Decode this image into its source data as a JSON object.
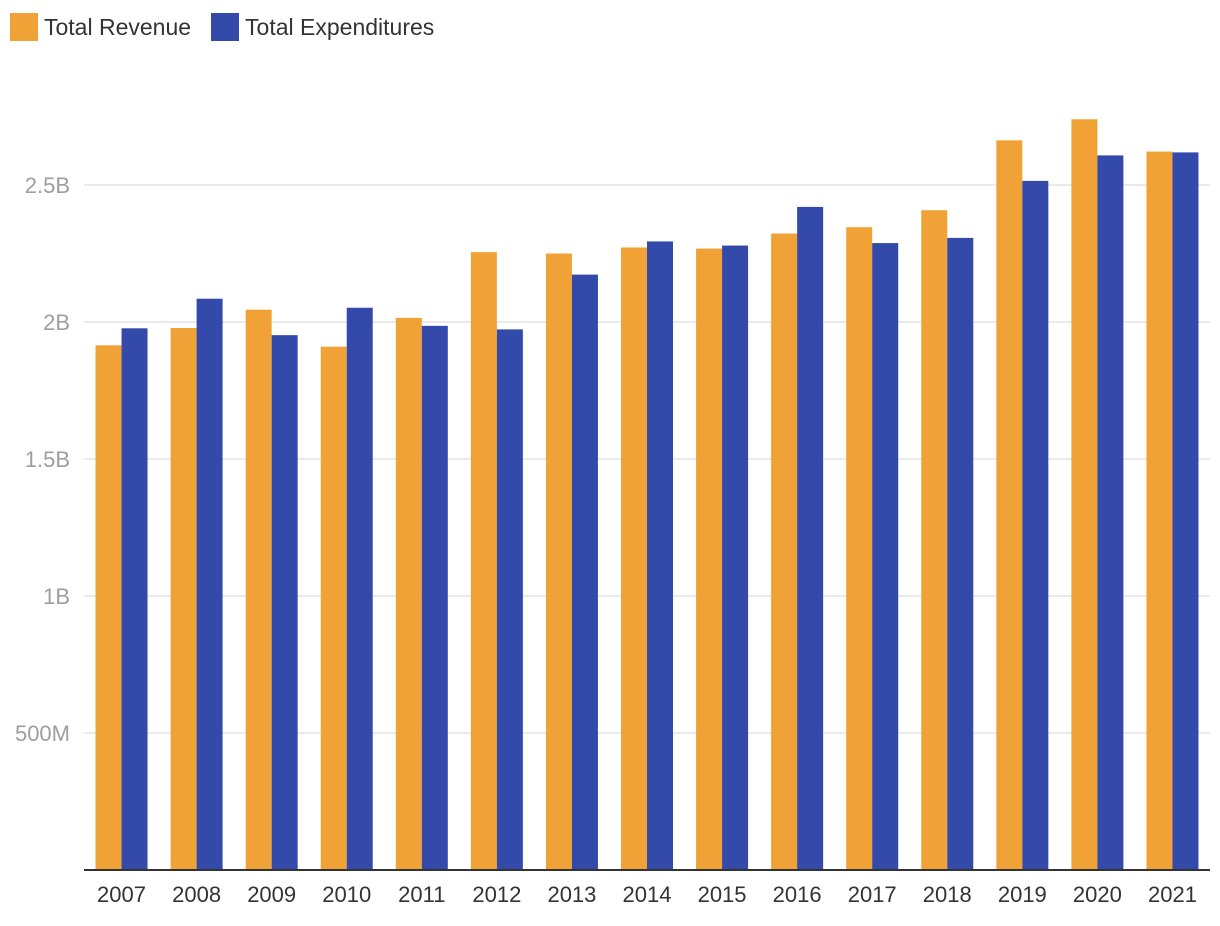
{
  "chart_data": {
    "type": "bar",
    "title": "",
    "xlabel": "",
    "ylabel": "",
    "categories": [
      "2007",
      "2008",
      "2009",
      "2010",
      "2011",
      "2012",
      "2013",
      "2014",
      "2015",
      "2016",
      "2017",
      "2018",
      "2019",
      "2020",
      "2021"
    ],
    "series": [
      {
        "name": "Total Revenue",
        "color": "#f0a236",
        "values": [
          1.915,
          1.978,
          2.045,
          1.91,
          2.015,
          2.255,
          2.25,
          2.272,
          2.268,
          2.323,
          2.346,
          2.408,
          2.663,
          2.74,
          2.622
        ]
      },
      {
        "name": "Total Expenditures",
        "color": "#334aaa",
        "values": [
          1.977,
          2.085,
          1.952,
          2.052,
          1.986,
          1.973,
          2.173,
          2.294,
          2.279,
          2.42,
          2.288,
          2.307,
          2.515,
          2.608,
          2.619
        ]
      }
    ],
    "yunit": "B",
    "ylim": [
      0,
      3.0
    ],
    "yticks": [
      0.5,
      1.0,
      1.5,
      2.0,
      2.5
    ],
    "ytick_labels": [
      "500M",
      "1B",
      "1.5B",
      "2B",
      "2.5B"
    ],
    "grid": true,
    "legend_position": "top-left"
  },
  "colors": {
    "gridline": "#e4e4e4",
    "axis": "#333333",
    "ytick_text": "#9e9e9e",
    "xtick_text": "#333333"
  }
}
